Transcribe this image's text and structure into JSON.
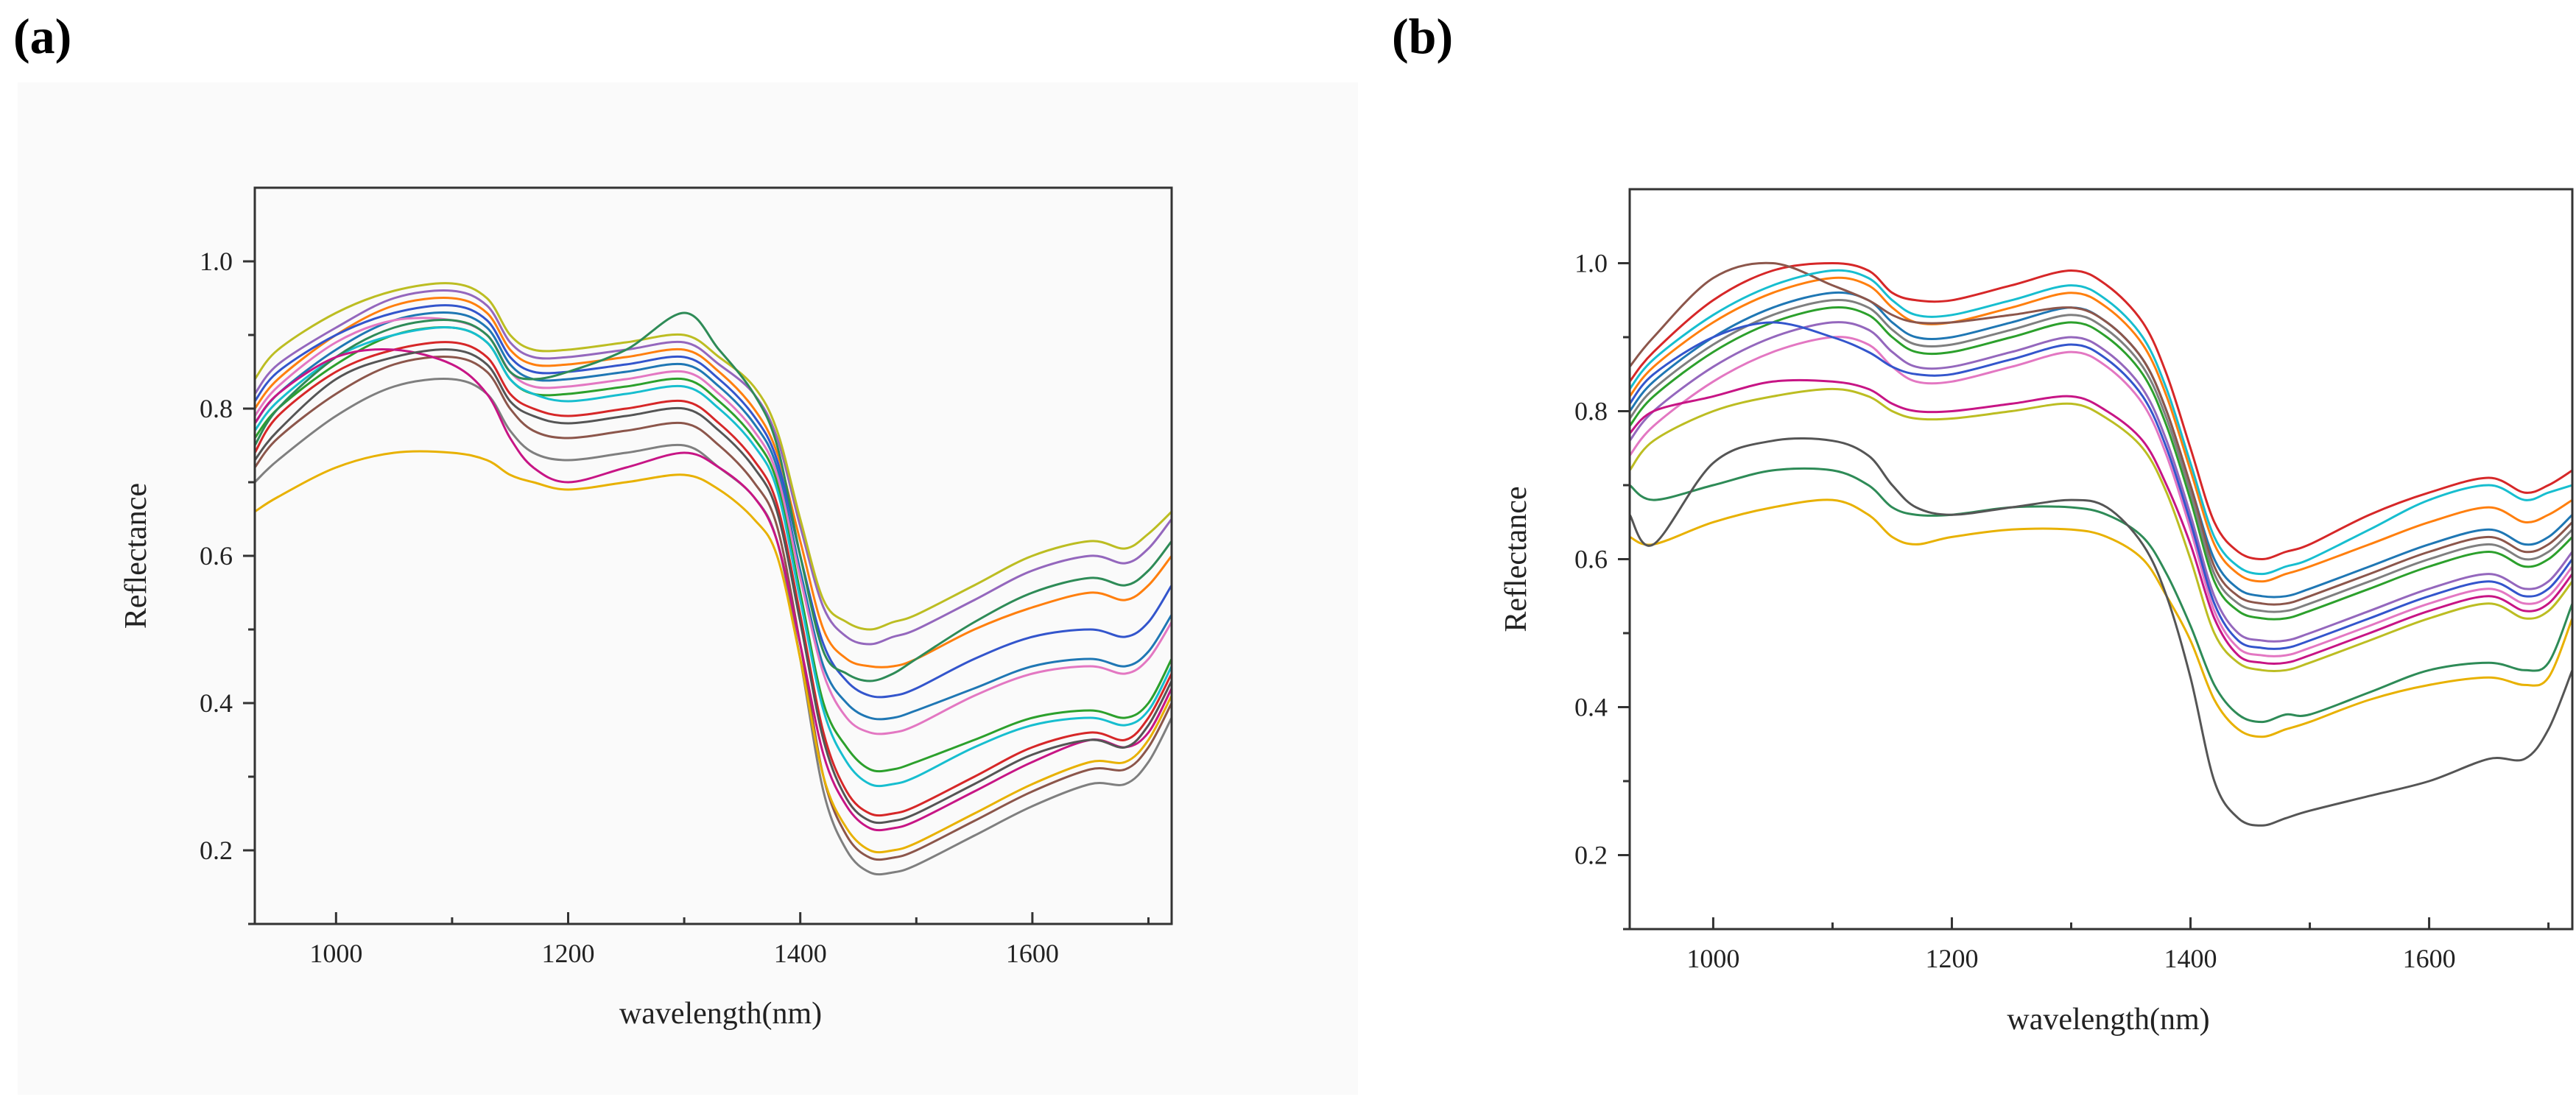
{
  "panels": [
    {
      "label": "(a)"
    },
    {
      "label": "(b)"
    }
  ],
  "chart_data": [
    {
      "type": "line",
      "panel": "(a)",
      "title": "",
      "xlabel": "wavelength(nm)",
      "ylabel": "Reflectance",
      "xlim": [
        930,
        1720
      ],
      "ylim": [
        0.1,
        1.1
      ],
      "xticks": [
        1000,
        1200,
        1400,
        1600
      ],
      "xtick_labels": [
        "1000",
        "1200",
        "1400",
        "1600"
      ],
      "yticks": [
        0.2,
        0.4,
        0.6,
        0.8,
        1.0
      ],
      "ytick_labels": [
        "0.2",
        "0.4",
        "0.6",
        "0.8",
        "1.0"
      ],
      "grid": false,
      "legend": "none",
      "colors": [
        "#1f77b4",
        "#ff7f0e",
        "#2ca02c",
        "#d62728",
        "#9467bd",
        "#8c564b",
        "#e377c2",
        "#7f7f7f",
        "#bcbd22",
        "#17becf",
        "#3355cc",
        "#e8b100",
        "#2e8b57",
        "#c71585",
        "#555555"
      ],
      "x": [
        930,
        950,
        1000,
        1050,
        1100,
        1130,
        1150,
        1170,
        1200,
        1250,
        1300,
        1330,
        1360,
        1380,
        1400,
        1420,
        1440,
        1460,
        1480,
        1500,
        1550,
        1600,
        1650,
        1680,
        1700,
        1720
      ],
      "series": [
        {
          "values": [
            0.78,
            0.82,
            0.88,
            0.92,
            0.93,
            0.91,
            0.86,
            0.84,
            0.84,
            0.85,
            0.86,
            0.83,
            0.78,
            0.72,
            0.58,
            0.45,
            0.4,
            0.38,
            0.38,
            0.39,
            0.42,
            0.45,
            0.46,
            0.45,
            0.47,
            0.52
          ]
        },
        {
          "values": [
            0.8,
            0.84,
            0.9,
            0.94,
            0.95,
            0.93,
            0.88,
            0.86,
            0.86,
            0.87,
            0.88,
            0.85,
            0.8,
            0.74,
            0.62,
            0.5,
            0.46,
            0.45,
            0.45,
            0.46,
            0.5,
            0.53,
            0.55,
            0.54,
            0.56,
            0.6
          ]
        },
        {
          "values": [
            0.76,
            0.8,
            0.86,
            0.9,
            0.91,
            0.89,
            0.84,
            0.82,
            0.82,
            0.83,
            0.84,
            0.81,
            0.76,
            0.7,
            0.55,
            0.4,
            0.34,
            0.31,
            0.31,
            0.32,
            0.35,
            0.38,
            0.39,
            0.38,
            0.4,
            0.46
          ]
        },
        {
          "values": [
            0.74,
            0.79,
            0.85,
            0.88,
            0.89,
            0.87,
            0.82,
            0.8,
            0.79,
            0.8,
            0.81,
            0.78,
            0.73,
            0.67,
            0.52,
            0.36,
            0.28,
            0.25,
            0.25,
            0.26,
            0.3,
            0.34,
            0.36,
            0.35,
            0.38,
            0.44
          ]
        },
        {
          "values": [
            0.82,
            0.86,
            0.91,
            0.95,
            0.96,
            0.94,
            0.89,
            0.87,
            0.87,
            0.88,
            0.89,
            0.86,
            0.82,
            0.76,
            0.64,
            0.53,
            0.49,
            0.48,
            0.49,
            0.5,
            0.54,
            0.58,
            0.6,
            0.59,
            0.61,
            0.65
          ]
        },
        {
          "values": [
            0.72,
            0.76,
            0.82,
            0.86,
            0.87,
            0.85,
            0.8,
            0.77,
            0.76,
            0.77,
            0.78,
            0.75,
            0.7,
            0.64,
            0.48,
            0.3,
            0.22,
            0.19,
            0.19,
            0.2,
            0.24,
            0.28,
            0.31,
            0.31,
            0.34,
            0.4
          ]
        },
        {
          "values": [
            0.79,
            0.83,
            0.89,
            0.92,
            0.92,
            0.9,
            0.85,
            0.83,
            0.83,
            0.84,
            0.85,
            0.82,
            0.77,
            0.71,
            0.57,
            0.44,
            0.38,
            0.36,
            0.36,
            0.37,
            0.41,
            0.44,
            0.45,
            0.44,
            0.46,
            0.51
          ]
        },
        {
          "values": [
            0.7,
            0.73,
            0.79,
            0.83,
            0.84,
            0.82,
            0.77,
            0.74,
            0.73,
            0.74,
            0.75,
            0.72,
            0.68,
            0.62,
            0.46,
            0.28,
            0.2,
            0.17,
            0.17,
            0.18,
            0.22,
            0.26,
            0.29,
            0.29,
            0.32,
            0.38
          ]
        },
        {
          "values": [
            0.84,
            0.88,
            0.93,
            0.96,
            0.97,
            0.95,
            0.9,
            0.88,
            0.88,
            0.89,
            0.9,
            0.87,
            0.83,
            0.77,
            0.65,
            0.54,
            0.51,
            0.5,
            0.51,
            0.52,
            0.56,
            0.6,
            0.62,
            0.61,
            0.63,
            0.66
          ]
        },
        {
          "values": [
            0.77,
            0.81,
            0.87,
            0.9,
            0.91,
            0.89,
            0.84,
            0.82,
            0.81,
            0.82,
            0.83,
            0.8,
            0.75,
            0.69,
            0.54,
            0.39,
            0.32,
            0.29,
            0.29,
            0.3,
            0.34,
            0.37,
            0.38,
            0.37,
            0.39,
            0.45
          ]
        },
        {
          "values": [
            0.81,
            0.85,
            0.9,
            0.93,
            0.94,
            0.92,
            0.87,
            0.85,
            0.85,
            0.86,
            0.87,
            0.84,
            0.79,
            0.73,
            0.6,
            0.48,
            0.43,
            0.41,
            0.41,
            0.42,
            0.46,
            0.49,
            0.5,
            0.49,
            0.51,
            0.56
          ]
        },
        {
          "values": [
            0.66,
            0.68,
            0.72,
            0.74,
            0.74,
            0.73,
            0.71,
            0.7,
            0.69,
            0.7,
            0.71,
            0.69,
            0.65,
            0.6,
            0.46,
            0.3,
            0.23,
            0.2,
            0.2,
            0.21,
            0.25,
            0.29,
            0.32,
            0.32,
            0.35,
            0.41
          ]
        },
        {
          "values": [
            0.75,
            0.8,
            0.87,
            0.91,
            0.92,
            0.9,
            0.85,
            0.84,
            0.85,
            0.88,
            0.93,
            0.88,
            0.82,
            0.75,
            0.6,
            0.47,
            0.44,
            0.43,
            0.44,
            0.46,
            0.51,
            0.55,
            0.57,
            0.56,
            0.58,
            0.62
          ]
        },
        {
          "values": [
            0.78,
            0.82,
            0.87,
            0.88,
            0.86,
            0.82,
            0.76,
            0.72,
            0.7,
            0.72,
            0.74,
            0.72,
            0.68,
            0.62,
            0.48,
            0.33,
            0.26,
            0.23,
            0.23,
            0.24,
            0.28,
            0.32,
            0.35,
            0.34,
            0.36,
            0.42
          ]
        },
        {
          "values": [
            0.73,
            0.77,
            0.84,
            0.87,
            0.88,
            0.86,
            0.81,
            0.79,
            0.78,
            0.79,
            0.8,
            0.77,
            0.72,
            0.66,
            0.51,
            0.35,
            0.27,
            0.24,
            0.24,
            0.25,
            0.29,
            0.33,
            0.35,
            0.34,
            0.37,
            0.43
          ]
        }
      ]
    },
    {
      "type": "line",
      "panel": "(b)",
      "title": "",
      "xlabel": "wavelength(nm)",
      "ylabel": "Reflectance",
      "xlim": [
        930,
        1720
      ],
      "ylim": [
        0.1,
        1.1
      ],
      "xticks": [
        1000,
        1200,
        1400,
        1600
      ],
      "xtick_labels": [
        "1000",
        "1200",
        "1400",
        "1600"
      ],
      "yticks": [
        0.2,
        0.4,
        0.6,
        0.8,
        1.0
      ],
      "ytick_labels": [
        "0.2",
        "0.4",
        "0.6",
        "0.8",
        "1.0"
      ],
      "grid": false,
      "legend": "none",
      "colors": [
        "#1f77b4",
        "#ff7f0e",
        "#2ca02c",
        "#d62728",
        "#9467bd",
        "#8c564b",
        "#e377c2",
        "#7f7f7f",
        "#bcbd22",
        "#17becf",
        "#3355cc",
        "#e8b100",
        "#2e8b57",
        "#c71585",
        "#555555"
      ],
      "x": [
        930,
        950,
        1000,
        1050,
        1100,
        1130,
        1150,
        1170,
        1200,
        1250,
        1300,
        1330,
        1360,
        1380,
        1400,
        1420,
        1440,
        1460,
        1480,
        1500,
        1550,
        1600,
        1650,
        1680,
        1700,
        1720
      ],
      "series": [
        {
          "values": [
            0.8,
            0.84,
            0.9,
            0.94,
            0.96,
            0.95,
            0.92,
            0.9,
            0.9,
            0.92,
            0.94,
            0.92,
            0.87,
            0.8,
            0.7,
            0.6,
            0.56,
            0.55,
            0.55,
            0.56,
            0.59,
            0.62,
            0.64,
            0.62,
            0.63,
            0.66
          ]
        },
        {
          "values": [
            0.82,
            0.86,
            0.92,
            0.96,
            0.98,
            0.97,
            0.94,
            0.92,
            0.92,
            0.94,
            0.96,
            0.94,
            0.89,
            0.82,
            0.72,
            0.62,
            0.58,
            0.57,
            0.58,
            0.59,
            0.62,
            0.65,
            0.67,
            0.65,
            0.66,
            0.68
          ]
        },
        {
          "values": [
            0.78,
            0.82,
            0.88,
            0.92,
            0.94,
            0.93,
            0.9,
            0.88,
            0.88,
            0.9,
            0.92,
            0.9,
            0.85,
            0.78,
            0.68,
            0.57,
            0.53,
            0.52,
            0.52,
            0.53,
            0.56,
            0.59,
            0.61,
            0.59,
            0.6,
            0.63
          ]
        },
        {
          "values": [
            0.84,
            0.88,
            0.95,
            0.99,
            1.0,
            0.99,
            0.96,
            0.95,
            0.95,
            0.97,
            0.99,
            0.97,
            0.92,
            0.85,
            0.75,
            0.65,
            0.61,
            0.6,
            0.61,
            0.62,
            0.66,
            0.69,
            0.71,
            0.69,
            0.7,
            0.72
          ]
        },
        {
          "values": [
            0.76,
            0.8,
            0.86,
            0.9,
            0.92,
            0.91,
            0.88,
            0.86,
            0.86,
            0.88,
            0.9,
            0.88,
            0.83,
            0.76,
            0.66,
            0.55,
            0.5,
            0.49,
            0.49,
            0.5,
            0.53,
            0.56,
            0.58,
            0.56,
            0.57,
            0.61
          ]
        },
        {
          "values": [
            0.86,
            0.9,
            0.98,
            1.0,
            0.97,
            0.95,
            0.93,
            0.92,
            0.92,
            0.93,
            0.94,
            0.92,
            0.87,
            0.8,
            0.7,
            0.59,
            0.55,
            0.54,
            0.54,
            0.55,
            0.58,
            0.61,
            0.63,
            0.61,
            0.62,
            0.65
          ]
        },
        {
          "values": [
            0.74,
            0.78,
            0.84,
            0.88,
            0.9,
            0.89,
            0.86,
            0.84,
            0.84,
            0.86,
            0.88,
            0.86,
            0.81,
            0.74,
            0.64,
            0.53,
            0.48,
            0.47,
            0.47,
            0.48,
            0.51,
            0.54,
            0.56,
            0.54,
            0.55,
            0.59
          ]
        },
        {
          "values": [
            0.79,
            0.83,
            0.89,
            0.93,
            0.95,
            0.94,
            0.91,
            0.89,
            0.89,
            0.91,
            0.93,
            0.91,
            0.86,
            0.79,
            0.69,
            0.58,
            0.54,
            0.53,
            0.53,
            0.54,
            0.57,
            0.6,
            0.62,
            0.6,
            0.61,
            0.64
          ]
        },
        {
          "values": [
            0.72,
            0.76,
            0.8,
            0.82,
            0.83,
            0.82,
            0.8,
            0.79,
            0.79,
            0.8,
            0.81,
            0.79,
            0.75,
            0.69,
            0.6,
            0.5,
            0.46,
            0.45,
            0.45,
            0.46,
            0.49,
            0.52,
            0.54,
            0.52,
            0.53,
            0.57
          ]
        },
        {
          "values": [
            0.83,
            0.87,
            0.93,
            0.97,
            0.99,
            0.98,
            0.95,
            0.93,
            0.93,
            0.95,
            0.97,
            0.95,
            0.9,
            0.83,
            0.73,
            0.63,
            0.59,
            0.58,
            0.59,
            0.6,
            0.64,
            0.68,
            0.7,
            0.68,
            0.69,
            0.7
          ]
        },
        {
          "values": [
            0.81,
            0.85,
            0.9,
            0.92,
            0.9,
            0.88,
            0.86,
            0.85,
            0.85,
            0.87,
            0.89,
            0.87,
            0.82,
            0.75,
            0.65,
            0.54,
            0.49,
            0.48,
            0.48,
            0.49,
            0.52,
            0.55,
            0.57,
            0.55,
            0.56,
            0.6
          ]
        },
        {
          "values": [
            0.63,
            0.62,
            0.65,
            0.67,
            0.68,
            0.66,
            0.63,
            0.62,
            0.63,
            0.64,
            0.64,
            0.63,
            0.6,
            0.55,
            0.49,
            0.41,
            0.37,
            0.36,
            0.37,
            0.38,
            0.41,
            0.43,
            0.44,
            0.43,
            0.44,
            0.52
          ]
        },
        {
          "values": [
            0.7,
            0.68,
            0.7,
            0.72,
            0.72,
            0.7,
            0.67,
            0.66,
            0.66,
            0.67,
            0.67,
            0.66,
            0.63,
            0.58,
            0.51,
            0.43,
            0.39,
            0.38,
            0.39,
            0.39,
            0.42,
            0.45,
            0.46,
            0.45,
            0.46,
            0.54
          ]
        },
        {
          "values": [
            0.77,
            0.8,
            0.82,
            0.84,
            0.84,
            0.83,
            0.81,
            0.8,
            0.8,
            0.81,
            0.82,
            0.8,
            0.76,
            0.7,
            0.62,
            0.52,
            0.47,
            0.46,
            0.46,
            0.47,
            0.5,
            0.53,
            0.55,
            0.53,
            0.54,
            0.58
          ]
        },
        {
          "values": [
            0.66,
            0.62,
            0.73,
            0.76,
            0.76,
            0.74,
            0.7,
            0.67,
            0.66,
            0.67,
            0.68,
            0.67,
            0.62,
            0.55,
            0.44,
            0.3,
            0.25,
            0.24,
            0.25,
            0.26,
            0.28,
            0.3,
            0.33,
            0.33,
            0.37,
            0.45
          ]
        }
      ]
    }
  ]
}
